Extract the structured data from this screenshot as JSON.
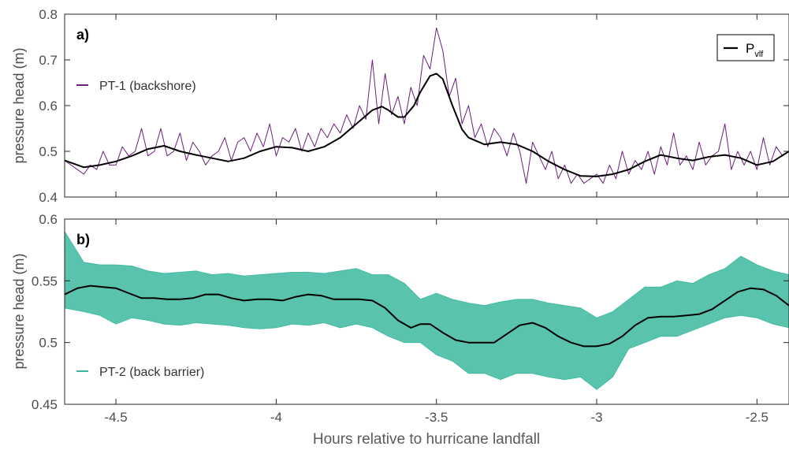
{
  "figure": {
    "xlabel": "Hours relative to hurricane landfall"
  },
  "colors": {
    "pt1": "#6a1f7a",
    "pt2": "#3cb8a0",
    "pvlf": "#000000",
    "axis": "#262626",
    "tick_text": "#4d4d4d"
  },
  "chart_data": [
    {
      "type": "line",
      "panel_label": "a)",
      "ylabel": "pressure head (m)",
      "xlim": [
        -4.66,
        -2.4
      ],
      "ylim": [
        0.4,
        0.8
      ],
      "xticks": [
        -4.5,
        -4,
        -3.5,
        -3,
        -2.5
      ],
      "xtick_labels": [
        "-4.5",
        "-4",
        "-3.5",
        "-3",
        "-2.5"
      ],
      "yticks": [
        0.4,
        0.5,
        0.6,
        0.7,
        0.8
      ],
      "ytick_labels": [
        "0.4",
        "0.5",
        "0.6",
        "0.7",
        "0.8"
      ],
      "legend": {
        "position": "top-right",
        "label": "P",
        "subscript": "vlf"
      },
      "series": [
        {
          "name": "PT-1 (backshore)",
          "color": "#6a1f7a",
          "x": [
            -4.66,
            -4.64,
            -4.62,
            -4.6,
            -4.58,
            -4.56,
            -4.54,
            -4.52,
            -4.5,
            -4.48,
            -4.46,
            -4.44,
            -4.42,
            -4.4,
            -4.38,
            -4.36,
            -4.34,
            -4.32,
            -4.3,
            -4.28,
            -4.26,
            -4.24,
            -4.22,
            -4.2,
            -4.18,
            -4.16,
            -4.14,
            -4.12,
            -4.1,
            -4.08,
            -4.06,
            -4.04,
            -4.02,
            -4.0,
            -3.98,
            -3.96,
            -3.94,
            -3.92,
            -3.9,
            -3.88,
            -3.86,
            -3.84,
            -3.82,
            -3.8,
            -3.78,
            -3.76,
            -3.74,
            -3.72,
            -3.7,
            -3.68,
            -3.66,
            -3.64,
            -3.62,
            -3.6,
            -3.58,
            -3.56,
            -3.54,
            -3.52,
            -3.5,
            -3.48,
            -3.46,
            -3.44,
            -3.42,
            -3.4,
            -3.38,
            -3.36,
            -3.34,
            -3.32,
            -3.3,
            -3.28,
            -3.26,
            -3.24,
            -3.22,
            -3.2,
            -3.18,
            -3.16,
            -3.14,
            -3.12,
            -3.1,
            -3.08,
            -3.06,
            -3.04,
            -3.02,
            -3.0,
            -2.98,
            -2.96,
            -2.94,
            -2.92,
            -2.9,
            -2.88,
            -2.86,
            -2.84,
            -2.82,
            -2.8,
            -2.78,
            -2.76,
            -2.74,
            -2.72,
            -2.7,
            -2.68,
            -2.66,
            -2.64,
            -2.62,
            -2.6,
            -2.58,
            -2.56,
            -2.54,
            -2.52,
            -2.5,
            -2.48,
            -2.46,
            -2.44,
            -2.42,
            -2.4
          ],
          "y": [
            0.48,
            0.47,
            0.46,
            0.45,
            0.47,
            0.46,
            0.5,
            0.47,
            0.47,
            0.51,
            0.49,
            0.5,
            0.55,
            0.49,
            0.5,
            0.55,
            0.49,
            0.5,
            0.54,
            0.48,
            0.52,
            0.5,
            0.47,
            0.49,
            0.5,
            0.53,
            0.48,
            0.52,
            0.53,
            0.5,
            0.54,
            0.51,
            0.56,
            0.49,
            0.53,
            0.52,
            0.55,
            0.5,
            0.54,
            0.51,
            0.55,
            0.53,
            0.56,
            0.54,
            0.58,
            0.55,
            0.6,
            0.57,
            0.7,
            0.56,
            0.67,
            0.58,
            0.62,
            0.56,
            0.64,
            0.6,
            0.71,
            0.68,
            0.77,
            0.72,
            0.62,
            0.66,
            0.56,
            0.6,
            0.53,
            0.56,
            0.51,
            0.55,
            0.53,
            0.49,
            0.54,
            0.5,
            0.43,
            0.52,
            0.49,
            0.46,
            0.5,
            0.44,
            0.47,
            0.43,
            0.45,
            0.43,
            0.44,
            0.45,
            0.43,
            0.47,
            0.44,
            0.5,
            0.45,
            0.48,
            0.46,
            0.5,
            0.45,
            0.51,
            0.47,
            0.54,
            0.47,
            0.49,
            0.46,
            0.52,
            0.47,
            0.49,
            0.5,
            0.56,
            0.46,
            0.5,
            0.47,
            0.5,
            0.46,
            0.53,
            0.47,
            0.51,
            0.49,
            0.5
          ]
        },
        {
          "name": "P_vlf",
          "color": "#000000",
          "x": [
            -4.66,
            -4.6,
            -4.55,
            -4.5,
            -4.45,
            -4.4,
            -4.35,
            -4.3,
            -4.25,
            -4.2,
            -4.15,
            -4.1,
            -4.05,
            -4.0,
            -3.95,
            -3.9,
            -3.85,
            -3.8,
            -3.75,
            -3.7,
            -3.67,
            -3.65,
            -3.62,
            -3.6,
            -3.57,
            -3.55,
            -3.52,
            -3.5,
            -3.48,
            -3.45,
            -3.42,
            -3.4,
            -3.35,
            -3.3,
            -3.25,
            -3.2,
            -3.15,
            -3.1,
            -3.05,
            -3.0,
            -2.95,
            -2.9,
            -2.85,
            -2.8,
            -2.75,
            -2.7,
            -2.65,
            -2.6,
            -2.55,
            -2.5,
            -2.45,
            -2.4
          ],
          "y": [
            0.48,
            0.465,
            0.47,
            0.478,
            0.49,
            0.505,
            0.512,
            0.5,
            0.492,
            0.485,
            0.478,
            0.485,
            0.5,
            0.51,
            0.508,
            0.5,
            0.51,
            0.53,
            0.56,
            0.59,
            0.598,
            0.59,
            0.575,
            0.575,
            0.6,
            0.63,
            0.665,
            0.67,
            0.658,
            0.6,
            0.548,
            0.53,
            0.515,
            0.52,
            0.515,
            0.5,
            0.478,
            0.46,
            0.446,
            0.445,
            0.45,
            0.46,
            0.478,
            0.492,
            0.485,
            0.48,
            0.488,
            0.492,
            0.485,
            0.47,
            0.478,
            0.5
          ]
        }
      ]
    },
    {
      "type": "line",
      "panel_label": "b)",
      "ylabel": "pressure head (m)",
      "xlabel": "Hours relative to hurricane landfall",
      "xlim": [
        -4.66,
        -2.4
      ],
      "ylim": [
        0.45,
        0.6
      ],
      "xticks": [
        -4.5,
        -4,
        -3.5,
        -3,
        -2.5
      ],
      "xtick_labels": [
        "-4.5",
        "-4",
        "-3.5",
        "-3",
        "-2.5"
      ],
      "yticks": [
        0.45,
        0.5,
        0.55,
        0.6
      ],
      "ytick_labels": [
        "0.45",
        "0.5",
        "0.55",
        "0.6"
      ],
      "series": [
        {
          "name": "PT-2 (back barrier)",
          "color": "#3cb8a0",
          "x": [
            -4.66,
            -4.6,
            -4.55,
            -4.5,
            -4.45,
            -4.4,
            -4.35,
            -4.3,
            -4.25,
            -4.2,
            -4.15,
            -4.1,
            -4.05,
            -4.0,
            -3.95,
            -3.9,
            -3.85,
            -3.8,
            -3.75,
            -3.7,
            -3.65,
            -3.6,
            -3.55,
            -3.5,
            -3.45,
            -3.4,
            -3.35,
            -3.3,
            -3.25,
            -3.2,
            -3.15,
            -3.1,
            -3.05,
            -3.0,
            -2.95,
            -2.9,
            -2.85,
            -2.8,
            -2.75,
            -2.7,
            -2.65,
            -2.6,
            -2.55,
            -2.5,
            -2.45,
            -2.4
          ],
          "y_upper": [
            0.59,
            0.565,
            0.563,
            0.563,
            0.562,
            0.558,
            0.556,
            0.557,
            0.558,
            0.555,
            0.556,
            0.554,
            0.555,
            0.556,
            0.557,
            0.557,
            0.556,
            0.558,
            0.56,
            0.555,
            0.555,
            0.548,
            0.535,
            0.54,
            0.535,
            0.532,
            0.53,
            0.533,
            0.535,
            0.535,
            0.532,
            0.53,
            0.528,
            0.52,
            0.525,
            0.535,
            0.545,
            0.545,
            0.55,
            0.548,
            0.555,
            0.56,
            0.57,
            0.563,
            0.558,
            0.555
          ],
          "y_lower": [
            0.528,
            0.525,
            0.522,
            0.515,
            0.52,
            0.518,
            0.515,
            0.514,
            0.516,
            0.515,
            0.514,
            0.512,
            0.511,
            0.512,
            0.515,
            0.514,
            0.516,
            0.512,
            0.515,
            0.512,
            0.505,
            0.5,
            0.5,
            0.49,
            0.485,
            0.475,
            0.475,
            0.47,
            0.475,
            0.475,
            0.472,
            0.47,
            0.472,
            0.462,
            0.472,
            0.495,
            0.5,
            0.505,
            0.505,
            0.51,
            0.515,
            0.52,
            0.522,
            0.52,
            0.515,
            0.512
          ]
        },
        {
          "name": "P_vlf",
          "color": "#000000",
          "x": [
            -4.66,
            -4.62,
            -4.58,
            -4.54,
            -4.5,
            -4.46,
            -4.42,
            -4.38,
            -4.34,
            -4.3,
            -4.26,
            -4.22,
            -4.18,
            -4.14,
            -4.1,
            -4.06,
            -4.02,
            -3.98,
            -3.94,
            -3.9,
            -3.86,
            -3.82,
            -3.78,
            -3.74,
            -3.7,
            -3.66,
            -3.62,
            -3.58,
            -3.55,
            -3.52,
            -3.48,
            -3.44,
            -3.4,
            -3.36,
            -3.32,
            -3.28,
            -3.24,
            -3.2,
            -3.16,
            -3.12,
            -3.08,
            -3.04,
            -3.0,
            -2.96,
            -2.92,
            -2.88,
            -2.84,
            -2.8,
            -2.76,
            -2.72,
            -2.68,
            -2.64,
            -2.6,
            -2.56,
            -2.52,
            -2.48,
            -2.44,
            -2.4
          ],
          "y": [
            0.539,
            0.544,
            0.546,
            0.545,
            0.544,
            0.54,
            0.536,
            0.536,
            0.535,
            0.535,
            0.536,
            0.539,
            0.539,
            0.536,
            0.534,
            0.535,
            0.535,
            0.534,
            0.537,
            0.539,
            0.538,
            0.535,
            0.535,
            0.535,
            0.534,
            0.528,
            0.518,
            0.512,
            0.515,
            0.515,
            0.508,
            0.502,
            0.5,
            0.5,
            0.5,
            0.507,
            0.514,
            0.516,
            0.512,
            0.505,
            0.5,
            0.497,
            0.497,
            0.499,
            0.505,
            0.514,
            0.52,
            0.521,
            0.521,
            0.522,
            0.523,
            0.527,
            0.534,
            0.541,
            0.544,
            0.543,
            0.538,
            0.53
          ]
        }
      ]
    }
  ]
}
